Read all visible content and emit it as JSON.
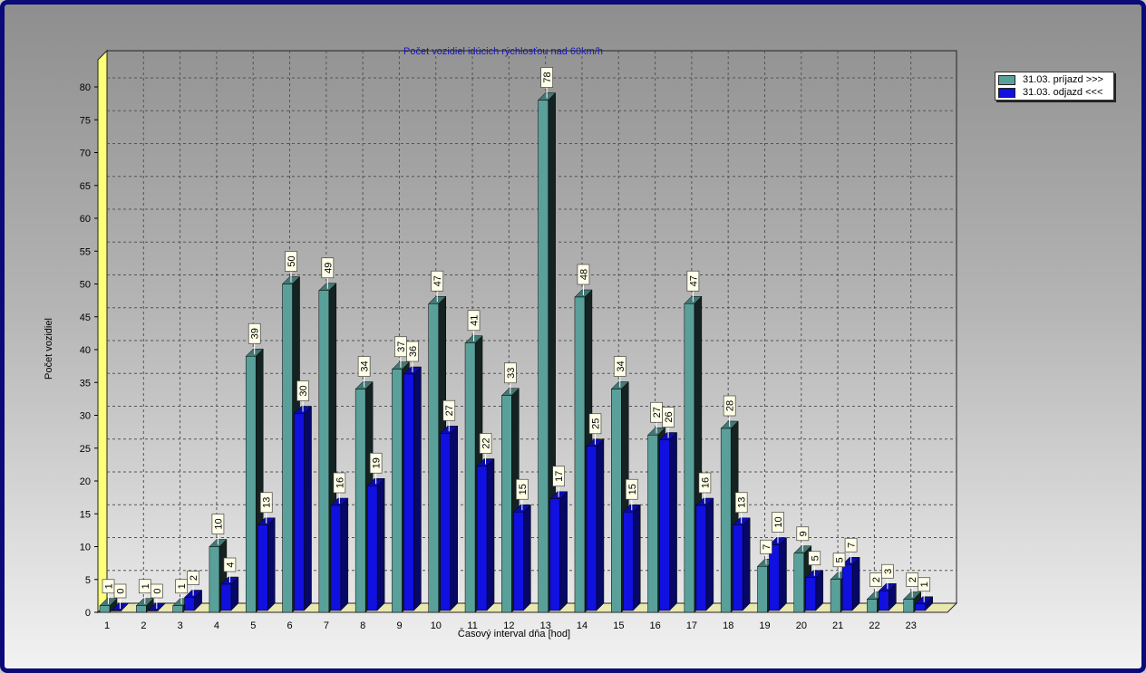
{
  "chart_data": {
    "type": "bar",
    "title": "Počet vozidiel idúcich rýchlosťou nad 60km/h",
    "xlabel": "Časový interval dňa [hod]",
    "ylabel": "Počet vozidiel",
    "ylim": [
      0,
      80
    ],
    "yticks": [
      0,
      5,
      10,
      15,
      20,
      25,
      30,
      35,
      40,
      45,
      50,
      55,
      60,
      65,
      70,
      75,
      80
    ],
    "categories": [
      "1",
      "2",
      "3",
      "4",
      "5",
      "6",
      "7",
      "8",
      "9",
      "10",
      "11",
      "12",
      "13",
      "14",
      "15",
      "16",
      "17",
      "18",
      "19",
      "20",
      "21",
      "22",
      "23"
    ],
    "grid": true,
    "legend_position": "top-right",
    "series": [
      {
        "name": "31.03.  príjazd >>>",
        "color": "#5aa09a",
        "values": [
          1,
          1,
          1,
          10,
          39,
          50,
          49,
          34,
          37,
          47,
          41,
          33,
          78,
          48,
          34,
          27,
          47,
          28,
          7,
          9,
          5,
          2,
          2
        ]
      },
      {
        "name": "31.03.  odjazd <<<",
        "color": "#1010e0",
        "values": [
          0,
          0,
          2,
          4,
          13,
          30,
          16,
          19,
          36,
          27,
          22,
          15,
          17,
          25,
          15,
          26,
          16,
          13,
          10,
          5,
          7,
          3,
          1
        ]
      }
    ]
  }
}
